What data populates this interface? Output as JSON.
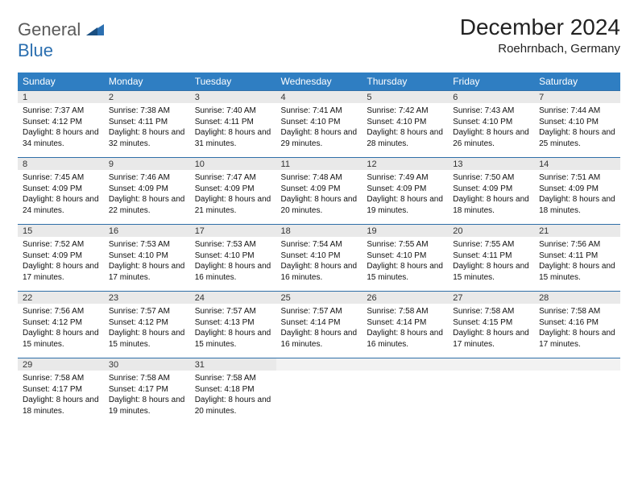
{
  "logo": {
    "part1": "General",
    "part2": "Blue"
  },
  "title": "December 2024",
  "location": "Roehrnbach, Germany",
  "colors": {
    "header_bg": "#2f7ec2",
    "header_fg": "#ffffff",
    "daynum_bg": "#e9e9e9",
    "row_border": "#2f6fa8",
    "logo_gray": "#5a5a5a",
    "logo_blue": "#2b6fb0"
  },
  "weekdays": [
    "Sunday",
    "Monday",
    "Tuesday",
    "Wednesday",
    "Thursday",
    "Friday",
    "Saturday"
  ],
  "weeks": [
    [
      {
        "n": "1",
        "sr": "7:37 AM",
        "ss": "4:12 PM",
        "dl": "8 hours and 34 minutes."
      },
      {
        "n": "2",
        "sr": "7:38 AM",
        "ss": "4:11 PM",
        "dl": "8 hours and 32 minutes."
      },
      {
        "n": "3",
        "sr": "7:40 AM",
        "ss": "4:11 PM",
        "dl": "8 hours and 31 minutes."
      },
      {
        "n": "4",
        "sr": "7:41 AM",
        "ss": "4:10 PM",
        "dl": "8 hours and 29 minutes."
      },
      {
        "n": "5",
        "sr": "7:42 AM",
        "ss": "4:10 PM",
        "dl": "8 hours and 28 minutes."
      },
      {
        "n": "6",
        "sr": "7:43 AM",
        "ss": "4:10 PM",
        "dl": "8 hours and 26 minutes."
      },
      {
        "n": "7",
        "sr": "7:44 AM",
        "ss": "4:10 PM",
        "dl": "8 hours and 25 minutes."
      }
    ],
    [
      {
        "n": "8",
        "sr": "7:45 AM",
        "ss": "4:09 PM",
        "dl": "8 hours and 24 minutes."
      },
      {
        "n": "9",
        "sr": "7:46 AM",
        "ss": "4:09 PM",
        "dl": "8 hours and 22 minutes."
      },
      {
        "n": "10",
        "sr": "7:47 AM",
        "ss": "4:09 PM",
        "dl": "8 hours and 21 minutes."
      },
      {
        "n": "11",
        "sr": "7:48 AM",
        "ss": "4:09 PM",
        "dl": "8 hours and 20 minutes."
      },
      {
        "n": "12",
        "sr": "7:49 AM",
        "ss": "4:09 PM",
        "dl": "8 hours and 19 minutes."
      },
      {
        "n": "13",
        "sr": "7:50 AM",
        "ss": "4:09 PM",
        "dl": "8 hours and 18 minutes."
      },
      {
        "n": "14",
        "sr": "7:51 AM",
        "ss": "4:09 PM",
        "dl": "8 hours and 18 minutes."
      }
    ],
    [
      {
        "n": "15",
        "sr": "7:52 AM",
        "ss": "4:09 PM",
        "dl": "8 hours and 17 minutes."
      },
      {
        "n": "16",
        "sr": "7:53 AM",
        "ss": "4:10 PM",
        "dl": "8 hours and 17 minutes."
      },
      {
        "n": "17",
        "sr": "7:53 AM",
        "ss": "4:10 PM",
        "dl": "8 hours and 16 minutes."
      },
      {
        "n": "18",
        "sr": "7:54 AM",
        "ss": "4:10 PM",
        "dl": "8 hours and 16 minutes."
      },
      {
        "n": "19",
        "sr": "7:55 AM",
        "ss": "4:10 PM",
        "dl": "8 hours and 15 minutes."
      },
      {
        "n": "20",
        "sr": "7:55 AM",
        "ss": "4:11 PM",
        "dl": "8 hours and 15 minutes."
      },
      {
        "n": "21",
        "sr": "7:56 AM",
        "ss": "4:11 PM",
        "dl": "8 hours and 15 minutes."
      }
    ],
    [
      {
        "n": "22",
        "sr": "7:56 AM",
        "ss": "4:12 PM",
        "dl": "8 hours and 15 minutes."
      },
      {
        "n": "23",
        "sr": "7:57 AM",
        "ss": "4:12 PM",
        "dl": "8 hours and 15 minutes."
      },
      {
        "n": "24",
        "sr": "7:57 AM",
        "ss": "4:13 PM",
        "dl": "8 hours and 15 minutes."
      },
      {
        "n": "25",
        "sr": "7:57 AM",
        "ss": "4:14 PM",
        "dl": "8 hours and 16 minutes."
      },
      {
        "n": "26",
        "sr": "7:58 AM",
        "ss": "4:14 PM",
        "dl": "8 hours and 16 minutes."
      },
      {
        "n": "27",
        "sr": "7:58 AM",
        "ss": "4:15 PM",
        "dl": "8 hours and 17 minutes."
      },
      {
        "n": "28",
        "sr": "7:58 AM",
        "ss": "4:16 PM",
        "dl": "8 hours and 17 minutes."
      }
    ],
    [
      {
        "n": "29",
        "sr": "7:58 AM",
        "ss": "4:17 PM",
        "dl": "8 hours and 18 minutes."
      },
      {
        "n": "30",
        "sr": "7:58 AM",
        "ss": "4:17 PM",
        "dl": "8 hours and 19 minutes."
      },
      {
        "n": "31",
        "sr": "7:58 AM",
        "ss": "4:18 PM",
        "dl": "8 hours and 20 minutes."
      },
      null,
      null,
      null,
      null
    ]
  ],
  "labels": {
    "sunrise": "Sunrise:",
    "sunset": "Sunset:",
    "daylight": "Daylight:"
  }
}
